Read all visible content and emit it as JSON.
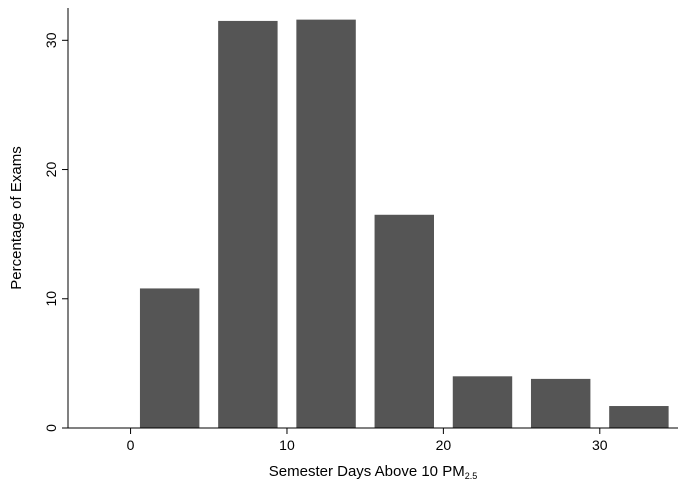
{
  "chart_data": {
    "type": "bar",
    "xlabel": "Semester Days Above 10 PM",
    "xlabel_subscript": "2.5",
    "ylabel": "Percentage of Exams",
    "xlim": [
      -4,
      35
    ],
    "ylim": [
      0,
      32.5
    ],
    "xticks": [
      0,
      10,
      20,
      30
    ],
    "yticks": [
      0,
      10,
      20,
      30
    ],
    "bar_width": 3.8,
    "bar_color": "#555555",
    "grid": false,
    "bars": [
      {
        "x": 2.5,
        "value": 10.8
      },
      {
        "x": 7.5,
        "value": 31.5
      },
      {
        "x": 12.5,
        "value": 31.6
      },
      {
        "x": 17.5,
        "value": 16.5
      },
      {
        "x": 22.5,
        "value": 4.0
      },
      {
        "x": 27.5,
        "value": 3.8
      },
      {
        "x": 32.5,
        "value": 1.7
      }
    ]
  }
}
